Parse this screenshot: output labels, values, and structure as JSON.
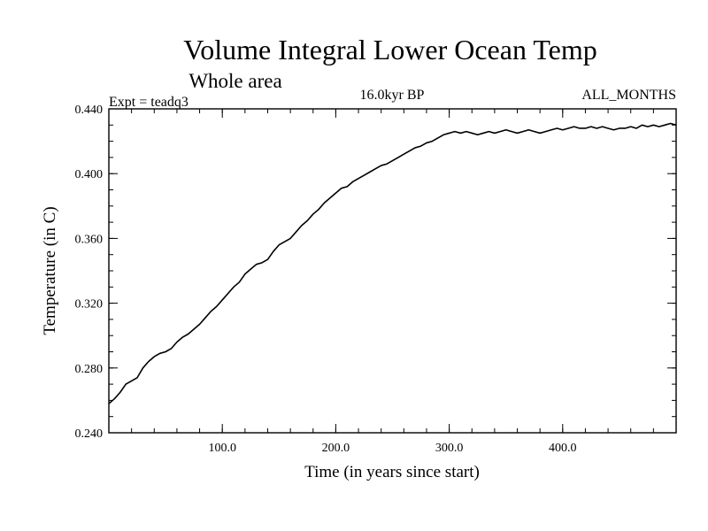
{
  "chart_data": {
    "type": "line",
    "title": "Volume Integral Lower Ocean Temp",
    "subtitle": "Whole area",
    "left_label": "Expt = teadq3",
    "center_label": "16.0kyr BP",
    "right_label": "ALL_MONTHS",
    "xlabel": "Time (in years since start)",
    "ylabel": "Temperature (in C)",
    "xlim": [
      0,
      500
    ],
    "ylim": [
      0.24,
      0.44
    ],
    "xticks": [
      100,
      200,
      300,
      400
    ],
    "xtick_labels": [
      "100.0",
      "200.0",
      "300.0",
      "400.0"
    ],
    "yticks": [
      0.24,
      0.28,
      0.32,
      0.36,
      0.4,
      0.44
    ],
    "ytick_labels": [
      "0.240",
      "0.280",
      "0.320",
      "0.360",
      "0.400",
      "0.440"
    ],
    "series": [
      {
        "name": "Volume Integral Lower Ocean Temp",
        "x": [
          0,
          5,
          10,
          15,
          20,
          25,
          30,
          35,
          40,
          45,
          50,
          55,
          60,
          65,
          70,
          75,
          80,
          85,
          90,
          95,
          100,
          105,
          110,
          115,
          120,
          125,
          130,
          135,
          140,
          145,
          150,
          155,
          160,
          165,
          170,
          175,
          180,
          185,
          190,
          195,
          200,
          205,
          210,
          215,
          220,
          225,
          230,
          235,
          240,
          245,
          250,
          255,
          260,
          265,
          270,
          275,
          280,
          285,
          290,
          295,
          300,
          305,
          310,
          315,
          320,
          325,
          330,
          335,
          340,
          345,
          350,
          355,
          360,
          365,
          370,
          375,
          380,
          385,
          390,
          395,
          400,
          405,
          410,
          415,
          420,
          425,
          430,
          435,
          440,
          445,
          450,
          455,
          460,
          465,
          470,
          475,
          480,
          485,
          490,
          495,
          500
        ],
        "values": [
          0.258,
          0.261,
          0.265,
          0.27,
          0.272,
          0.274,
          0.28,
          0.284,
          0.287,
          0.289,
          0.29,
          0.292,
          0.296,
          0.299,
          0.301,
          0.304,
          0.307,
          0.311,
          0.315,
          0.318,
          0.322,
          0.326,
          0.33,
          0.333,
          0.338,
          0.341,
          0.344,
          0.345,
          0.347,
          0.352,
          0.356,
          0.358,
          0.36,
          0.364,
          0.368,
          0.371,
          0.375,
          0.378,
          0.382,
          0.385,
          0.388,
          0.391,
          0.392,
          0.395,
          0.397,
          0.399,
          0.401,
          0.403,
          0.405,
          0.406,
          0.408,
          0.41,
          0.412,
          0.414,
          0.416,
          0.417,
          0.419,
          0.42,
          0.422,
          0.424,
          0.425,
          0.426,
          0.425,
          0.426,
          0.425,
          0.424,
          0.425,
          0.426,
          0.425,
          0.426,
          0.427,
          0.426,
          0.425,
          0.426,
          0.427,
          0.426,
          0.425,
          0.426,
          0.427,
          0.428,
          0.427,
          0.428,
          0.429,
          0.428,
          0.428,
          0.429,
          0.428,
          0.429,
          0.428,
          0.427,
          0.428,
          0.428,
          0.429,
          0.428,
          0.43,
          0.429,
          0.43,
          0.429,
          0.43,
          0.431,
          0.43
        ]
      }
    ]
  }
}
